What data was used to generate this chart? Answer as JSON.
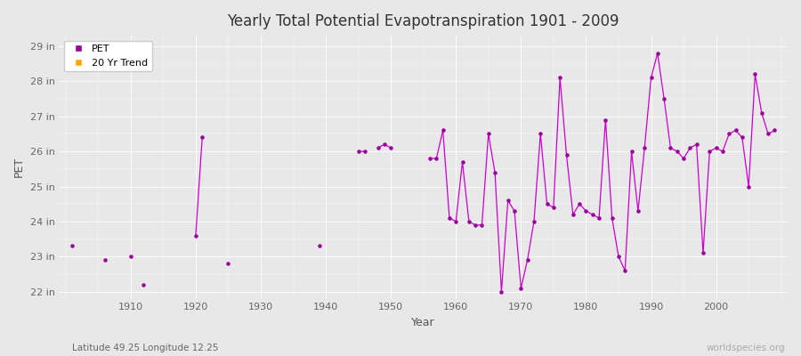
{
  "title": "Yearly Total Potential Evapotranspiration 1901 - 2009",
  "xlabel": "Year",
  "ylabel": "PET",
  "subtitle": "Latitude 49.25 Longitude 12.25",
  "watermark": "worldspecies.org",
  "bg_color": "#e8e8e8",
  "plot_bg_color": "#e8e8e8",
  "line_color": "#cc00cc",
  "marker_color": "#990099",
  "trend_color": "#ffa500",
  "ylim": [
    21.8,
    29.3
  ],
  "ytick_labels": [
    "22 in",
    "23 in",
    "24 in",
    "25 in",
    "26 in",
    "27 in",
    "28 in",
    "29 in"
  ],
  "ytick_values": [
    22,
    23,
    24,
    25,
    26,
    27,
    28,
    29
  ],
  "xticks": [
    1910,
    1920,
    1930,
    1940,
    1950,
    1960,
    1970,
    1980,
    1990,
    2000
  ],
  "years": [
    1901,
    1902,
    1903,
    1904,
    1905,
    1906,
    1907,
    1908,
    1909,
    1910,
    1911,
    1912,
    1913,
    1914,
    1915,
    1916,
    1917,
    1918,
    1919,
    1920,
    1921,
    1922,
    1923,
    1924,
    1925,
    1926,
    1927,
    1928,
    1929,
    1930,
    1931,
    1932,
    1933,
    1934,
    1935,
    1936,
    1937,
    1938,
    1939,
    1940,
    1941,
    1942,
    1943,
    1944,
    1945,
    1946,
    1947,
    1948,
    1949,
    1950,
    1951,
    1952,
    1953,
    1954,
    1955,
    1956,
    1957,
    1958,
    1959,
    1960,
    1961,
    1962,
    1963,
    1964,
    1965,
    1966,
    1967,
    1968,
    1969,
    1970,
    1971,
    1972,
    1973,
    1974,
    1975,
    1976,
    1977,
    1978,
    1979,
    1980,
    1981,
    1982,
    1983,
    1984,
    1985,
    1986,
    1987,
    1988,
    1989,
    1990,
    1991,
    1992,
    1993,
    1994,
    1995,
    1996,
    1997,
    1998,
    1999,
    2000,
    2001,
    2002,
    2003,
    2004,
    2005,
    2006,
    2007,
    2008,
    2009
  ],
  "values": [
    23.3,
    null,
    null,
    null,
    null,
    22.9,
    null,
    null,
    null,
    23.0,
    null,
    22.2,
    null,
    null,
    null,
    null,
    null,
    null,
    null,
    23.6,
    26.4,
    null,
    null,
    null,
    22.8,
    null,
    null,
    null,
    null,
    null,
    null,
    null,
    null,
    null,
    null,
    null,
    null,
    null,
    23.3,
    null,
    null,
    null,
    null,
    null,
    26.0,
    26.0,
    null,
    26.1,
    26.2,
    26.1,
    null,
    null,
    null,
    null,
    null,
    25.8,
    25.8,
    26.6,
    24.1,
    24.0,
    25.7,
    24.0,
    23.9,
    23.9,
    26.5,
    25.4,
    22.0,
    24.6,
    24.3,
    22.1,
    22.9,
    24.0,
    26.5,
    24.5,
    24.4,
    28.1,
    25.9,
    24.2,
    24.5,
    24.3,
    24.2,
    24.1,
    26.9,
    24.1,
    23.0,
    22.6,
    26.0,
    24.3,
    26.1,
    28.1,
    28.8,
    27.5,
    26.1,
    26.0,
    25.8,
    26.1,
    26.2,
    23.1,
    26.0,
    26.1,
    26.0,
    26.5,
    26.6,
    26.4,
    25.0,
    28.2,
    27.1,
    26.5,
    26.6
  ]
}
